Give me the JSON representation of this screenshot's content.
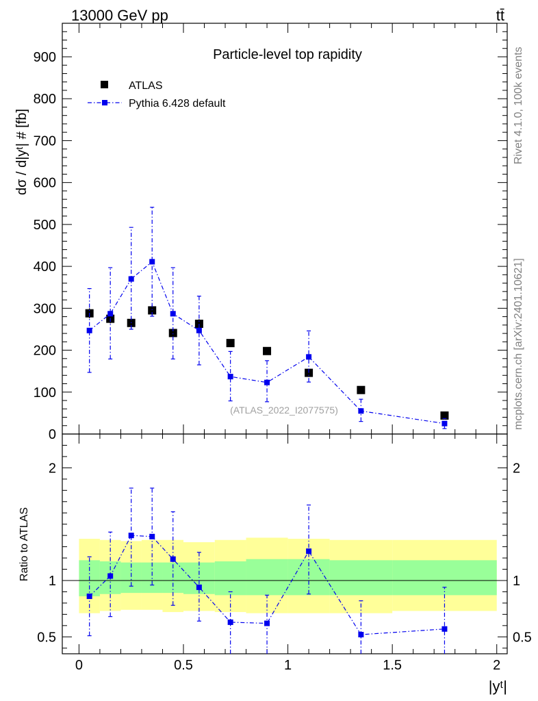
{
  "header": {
    "left": "13000 GeV pp",
    "right": "tt̄"
  },
  "side_labels": {
    "rivet": "Rivet 4.1.0,  100k events",
    "mcplots": "mcplots.cern.ch [arXiv:2401.10621]"
  },
  "chart_data": [
    {
      "type": "scatter",
      "title": "Particle-level top rapidity",
      "watermark": "(ATLAS_2022_I2077575)",
      "xlabel": "|yᵗ|",
      "ylabel": "dσ / d|yᵗ| # [fb]",
      "xlim": [
        -0.08,
        2.05
      ],
      "ylim": [
        0,
        980
      ],
      "yticks": [
        0,
        100,
        200,
        300,
        400,
        500,
        600,
        700,
        800,
        900
      ],
      "ytick_labels": [
        "0",
        "100",
        "200",
        "300",
        "400",
        "500",
        "600",
        "700",
        "800",
        "900"
      ],
      "legend": {
        "position": "top-left",
        "entries": [
          "ATLAS",
          "Pythia 6.428 default"
        ]
      },
      "series": [
        {
          "name": "ATLAS",
          "color": "#000000",
          "x": [
            0.05,
            0.15,
            0.25,
            0.35,
            0.45,
            0.575,
            0.725,
            0.9,
            1.1,
            1.35,
            1.75
          ],
          "y": [
            288,
            275,
            265,
            295,
            241,
            263,
            217,
            198,
            146,
            105,
            44
          ],
          "yerr": [
            12,
            11,
            11,
            12,
            10,
            11,
            9,
            8,
            7,
            5,
            3
          ]
        },
        {
          "name": "Pythia 6.428 default",
          "color": "#0000ee",
          "x": [
            0.05,
            0.15,
            0.25,
            0.35,
            0.45,
            0.575,
            0.725,
            0.9,
            1.1,
            1.35,
            1.75
          ],
          "y": [
            247,
            287,
            370,
            411,
            287,
            247,
            137,
            123,
            184,
            55,
            25
          ],
          "yerr_low": [
            100,
            108,
            120,
            130,
            108,
            82,
            58,
            46,
            60,
            25,
            12
          ],
          "yerr_high": [
            100,
            110,
            123,
            130,
            110,
            82,
            60,
            52,
            62,
            28,
            12
          ]
        }
      ]
    },
    {
      "type": "scatter",
      "ylabel": "Ratio to ATLAS",
      "xlabel": "|yᵗ|",
      "xlim": [
        -0.08,
        2.05
      ],
      "ylim": [
        0.35,
        2.3
      ],
      "yticks": [
        0.5,
        1,
        2
      ],
      "ytick_labels": [
        "0.5",
        "1",
        "2"
      ],
      "xticks": [
        0,
        0.5,
        1,
        1.5,
        2
      ],
      "xtick_labels": [
        "0",
        "0.5",
        "1",
        "1.5",
        "2"
      ],
      "reference_line": 1,
      "bins": [
        0,
        0.1,
        0.2,
        0.3,
        0.4,
        0.5,
        0.65,
        0.8,
        1.0,
        1.2,
        1.5,
        2.0
      ],
      "band_1sigma": {
        "color": "#99ff99",
        "low": [
          0.86,
          0.88,
          0.89,
          0.89,
          0.89,
          0.88,
          0.87,
          0.87,
          0.87,
          0.87,
          0.87
        ],
        "high": [
          1.18,
          1.17,
          1.16,
          1.16,
          1.16,
          1.16,
          1.17,
          1.19,
          1.19,
          1.18,
          1.18
        ]
      },
      "band_2sigma": {
        "color": "#ffff99",
        "low": [
          0.71,
          0.73,
          0.74,
          0.74,
          0.72,
          0.73,
          0.72,
          0.71,
          0.71,
          0.71,
          0.73
        ],
        "high": [
          1.37,
          1.36,
          1.35,
          1.36,
          1.36,
          1.34,
          1.36,
          1.38,
          1.37,
          1.36,
          1.36
        ]
      },
      "series": [
        {
          "name": "Pythia 6.428 default / ATLAS",
          "color": "#0000ee",
          "x": [
            0.05,
            0.15,
            0.25,
            0.35,
            0.45,
            0.575,
            0.725,
            0.9,
            1.1,
            1.35,
            1.75
          ],
          "y": [
            0.86,
            1.04,
            1.4,
            1.39,
            1.19,
            0.94,
            0.63,
            0.62,
            1.26,
            0.52,
            0.57
          ],
          "err_low": [
            0.35,
            0.36,
            0.45,
            0.43,
            0.41,
            0.3,
            0.31,
            0.28,
            0.38,
            0.2,
            0.26
          ],
          "err_high": [
            0.35,
            0.39,
            0.42,
            0.43,
            0.42,
            0.31,
            0.27,
            0.25,
            0.41,
            0.3,
            0.37
          ]
        }
      ]
    }
  ]
}
